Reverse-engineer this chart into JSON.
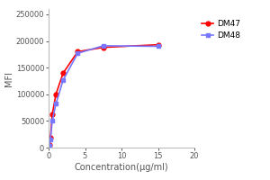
{
  "title": "",
  "xlabel": "Concentration(μg/ml)",
  "ylabel": "MFI",
  "xlim": [
    0,
    20
  ],
  "ylim": [
    0,
    260000
  ],
  "xticks": [
    0,
    5,
    10,
    15,
    20
  ],
  "yticks": [
    0,
    50000,
    100000,
    150000,
    200000,
    250000
  ],
  "series": [
    {
      "label": "DM47",
      "color": "#FF0000",
      "marker": "o",
      "markersize": 3.5,
      "linewidth": 1.2,
      "x": [
        0.06,
        0.12,
        0.25,
        0.5,
        1.0,
        2.0,
        4.0,
        7.5,
        15.0
      ],
      "y": [
        1500,
        5000,
        18000,
        62000,
        100000,
        140000,
        180000,
        188000,
        193000
      ]
    },
    {
      "label": "DM48",
      "color": "#7777FF",
      "marker": "s",
      "markersize": 3.5,
      "linewidth": 1.2,
      "x": [
        0.06,
        0.12,
        0.25,
        0.5,
        1.0,
        2.0,
        4.0,
        7.5,
        15.0
      ],
      "y": [
        1000,
        4000,
        15000,
        50000,
        82000,
        127000,
        177000,
        191000,
        190000
      ]
    }
  ],
  "legend_fontsize": 6.5,
  "tick_fontsize": 6,
  "label_fontsize": 7,
  "background_color": "#FFFFFF"
}
